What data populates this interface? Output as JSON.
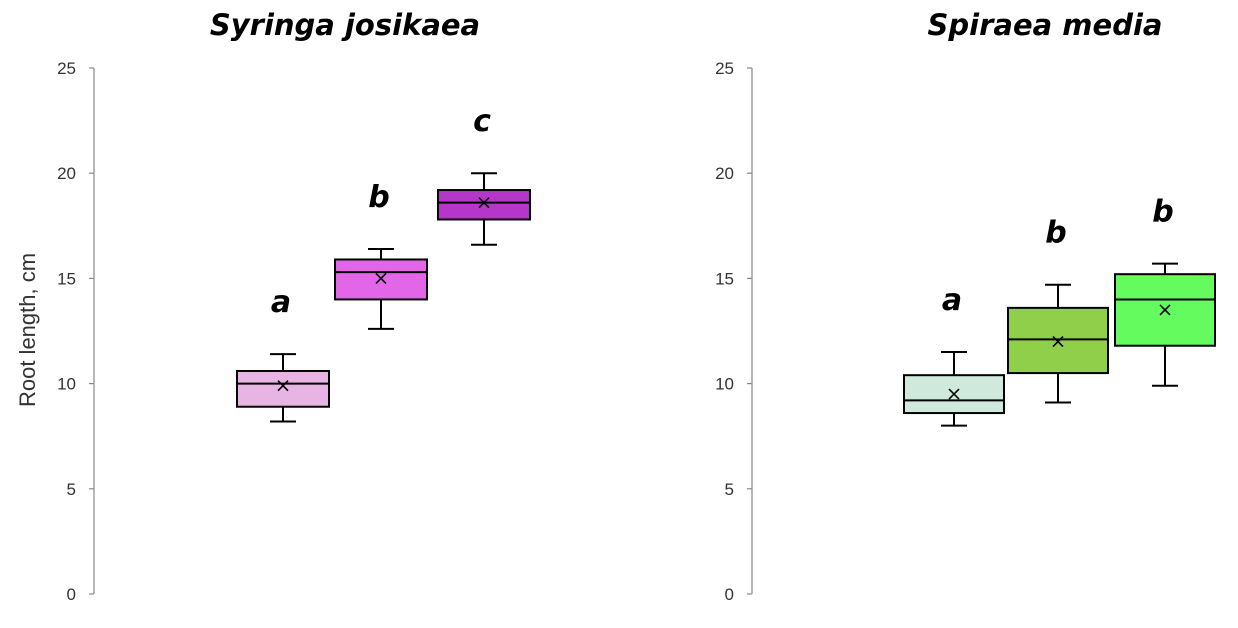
{
  "chart_data": [
    {
      "type": "box",
      "title": "Syringa josikaea",
      "ylabel": "Root length, cm",
      "ylim": [
        0,
        25
      ],
      "yticks": [
        0,
        5,
        10,
        15,
        20,
        25
      ],
      "ytick_labels": [
        "0",
        "5",
        "10",
        "15",
        "20",
        "25"
      ],
      "groups": [
        {
          "min": 8.2,
          "q1": 8.9,
          "median": 10.0,
          "q3": 10.6,
          "max": 11.4,
          "mean": 9.9,
          "letter": "a",
          "color": "#e8b4e4"
        },
        {
          "min": 12.6,
          "q1": 14.0,
          "median": 15.3,
          "q3": 15.9,
          "max": 16.4,
          "mean": 15.0,
          "letter": "b",
          "color": "#e366e8"
        },
        {
          "min": 16.6,
          "q1": 17.8,
          "median": 18.6,
          "q3": 19.2,
          "max": 20.0,
          "mean": 18.6,
          "letter": "c",
          "color": "#b437c9"
        }
      ]
    },
    {
      "type": "box",
      "title": "Spiraea media",
      "ylabel": "",
      "ylim": [
        0,
        25
      ],
      "yticks": [
        0,
        5,
        10,
        15,
        20,
        25
      ],
      "ytick_labels": [
        "0",
        "5",
        "10",
        "15",
        "20",
        "25"
      ],
      "groups": [
        {
          "min": 8.0,
          "q1": 8.6,
          "median": 9.2,
          "q3": 10.4,
          "max": 11.5,
          "mean": 9.5,
          "letter": "a",
          "color": "#cfe9dc"
        },
        {
          "min": 9.1,
          "q1": 10.5,
          "median": 12.1,
          "q3": 13.6,
          "max": 14.7,
          "mean": 12.0,
          "letter": "b",
          "color": "#8fcf4a"
        },
        {
          "min": 9.9,
          "q1": 11.8,
          "median": 14.0,
          "q3": 15.2,
          "max": 15.7,
          "mean": 13.5,
          "letter": "b",
          "color": "#63fb5e"
        }
      ]
    }
  ]
}
